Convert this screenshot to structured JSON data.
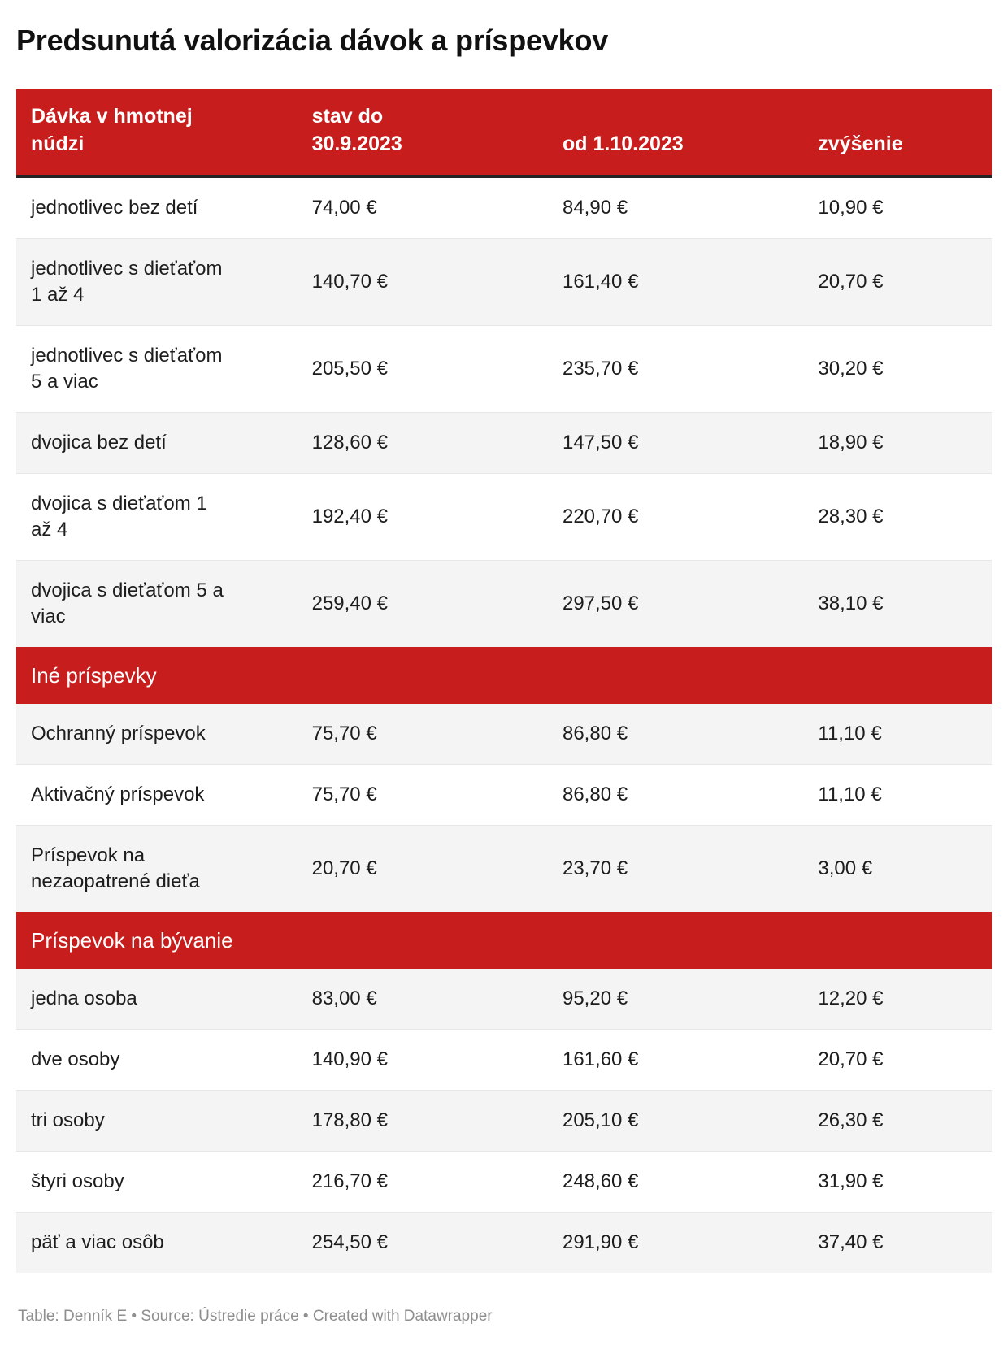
{
  "title": "Predsunutá valorizácia dávok a príspevkov",
  "colors": {
    "header_red": "#c71e1d",
    "row_alt_gray": "#f4f4f4",
    "header_rule_dark": "#232323",
    "footnote_gray": "#8e8e8e"
  },
  "table": {
    "header": {
      "col1": "Dávka v hmotnej\nnúdzi",
      "col2": "stav do\n30.9.2023",
      "col3": "od 1.10.2023",
      "col4": "zvýšenie"
    },
    "bands": {
      "other": "Iné príspevky",
      "housing": "Príspevok na bývanie"
    },
    "rows": [
      {
        "label": "jednotlivec bez detí",
        "before": "74,00 €",
        "after": "84,90 €",
        "increase": "10,90 €"
      },
      {
        "label": "jednotlivec s dieťaťom\n1 až 4",
        "before": "140,70 €",
        "after": "161,40 €",
        "increase": "20,70 €"
      },
      {
        "label": "jednotlivec s dieťaťom\n5 a viac",
        "before": "205,50 €",
        "after": "235,70 €",
        "increase": "30,20 €"
      },
      {
        "label": "dvojica bez detí",
        "before": "128,60 €",
        "after": "147,50 €",
        "increase": "18,90 €"
      },
      {
        "label": "dvojica s dieťaťom 1\naž 4",
        "before": "192,40 €",
        "after": "220,70 €",
        "increase": "28,30 €"
      },
      {
        "label": "dvojica s dieťaťom 5 a\nviac",
        "before": "259,40 €",
        "after": "297,50 €",
        "increase": "38,10 €"
      },
      {
        "label": "Ochranný príspevok",
        "before": "75,70 €",
        "after": "86,80 €",
        "increase": "11,10 €"
      },
      {
        "label": "Aktivačný príspevok",
        "before": "75,70 €",
        "after": "86,80 €",
        "increase": "11,10 €"
      },
      {
        "label": "Príspevok na\nnezaopatrené dieťa",
        "before": "20,70 €",
        "after": "23,70 €",
        "increase": "3,00 €"
      },
      {
        "label": "jedna osoba",
        "before": "83,00 €",
        "after": "95,20 €",
        "increase": "12,20 €"
      },
      {
        "label": "dve osoby",
        "before": "140,90 €",
        "after": "161,60 €",
        "increase": "20,70 €"
      },
      {
        "label": "tri osoby",
        "before": "178,80 €",
        "after": "205,10 €",
        "increase": "26,30 €"
      },
      {
        "label": "štyri osoby",
        "before": "216,70 €",
        "after": "248,60 €",
        "increase": "31,90 €"
      },
      {
        "label": "päť a viac osôb",
        "before": "254,50 €",
        "after": "291,90 €",
        "increase": "37,40 €"
      }
    ]
  },
  "footer": "Table: Denník E • Source: Ústredie práce • Created with Datawrapper",
  "chart_data": {
    "type": "table",
    "title": "Predsunutá valorizácia dávok a príspevkov",
    "columns": [
      "Dávka v hmotnej núdzi",
      "stav do 30.9.2023",
      "od 1.10.2023",
      "zvýšenie"
    ],
    "sections": [
      {
        "name": "Dávka v hmotnej núdzi",
        "rows": [
          [
            "jednotlivec bez detí",
            "74,00 €",
            "84,90 €",
            "10,90 €"
          ],
          [
            "jednotlivec s dieťaťom 1 až 4",
            "140,70 €",
            "161,40 €",
            "20,70 €"
          ],
          [
            "jednotlivec s dieťaťom 5 a viac",
            "205,50 €",
            "235,70 €",
            "30,20 €"
          ],
          [
            "dvojica bez detí",
            "128,60 €",
            "147,50 €",
            "18,90 €"
          ],
          [
            "dvojica s dieťaťom 1 až 4",
            "192,40 €",
            "220,70 €",
            "28,30 €"
          ],
          [
            "dvojica s dieťaťom 5 a viac",
            "259,40 €",
            "297,50 €",
            "38,10 €"
          ]
        ]
      },
      {
        "name": "Iné príspevky",
        "rows": [
          [
            "Ochranný príspevok",
            "75,70 €",
            "86,80 €",
            "11,10 €"
          ],
          [
            "Aktivačný príspevok",
            "75,70 €",
            "86,80 €",
            "11,10 €"
          ],
          [
            "Príspevok na nezaopatrené dieťa",
            "20,70 €",
            "23,70 €",
            "3,00 €"
          ]
        ]
      },
      {
        "name": "Príspevok na bývanie",
        "rows": [
          [
            "jedna osoba",
            "83,00 €",
            "95,20 €",
            "12,20 €"
          ],
          [
            "dve osoby",
            "140,90 €",
            "161,60 €",
            "20,70 €"
          ],
          [
            "tri osoby",
            "178,80 €",
            "205,10 €",
            "26,30 €"
          ],
          [
            "štyri osoby",
            "216,70 €",
            "248,60 €",
            "31,90 €"
          ],
          [
            "päť a viac osôb",
            "254,50 €",
            "291,90 €",
            "37,40 €"
          ]
        ]
      }
    ],
    "credit": "Table: Denník E • Source: Ústredie práce • Created with Datawrapper"
  }
}
